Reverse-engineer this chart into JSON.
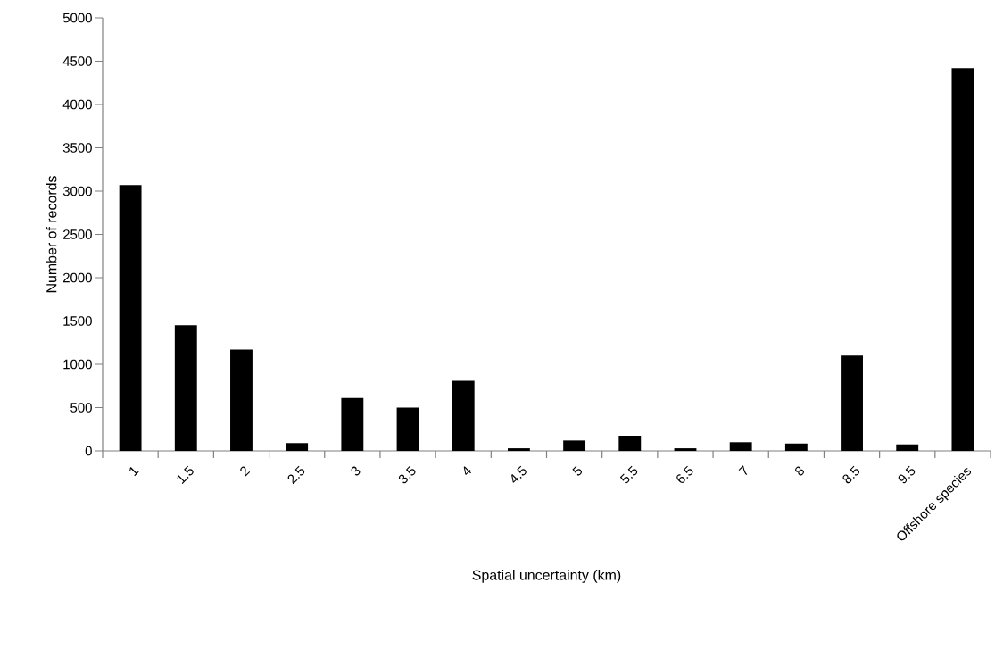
{
  "chart_data": {
    "type": "bar",
    "xlabel": "Spatial uncertainty (km)",
    "ylabel": "Number of records",
    "categories": [
      "1",
      "1.5",
      "2",
      "2.5",
      "3",
      "3.5",
      "4",
      "4.5",
      "5",
      "5.5",
      "6.5",
      "7",
      "8",
      "8.5",
      "9.5",
      "Offshore species"
    ],
    "values": [
      3070,
      1450,
      1170,
      90,
      610,
      500,
      810,
      30,
      120,
      175,
      30,
      100,
      85,
      1100,
      75,
      4420
    ],
    "color": "#000000",
    "ylim": [
      0,
      5000
    ],
    "yticks": [
      0,
      500,
      1000,
      1500,
      2000,
      2500,
      3000,
      3500,
      4000,
      4500,
      5000
    ],
    "grid": false
  }
}
